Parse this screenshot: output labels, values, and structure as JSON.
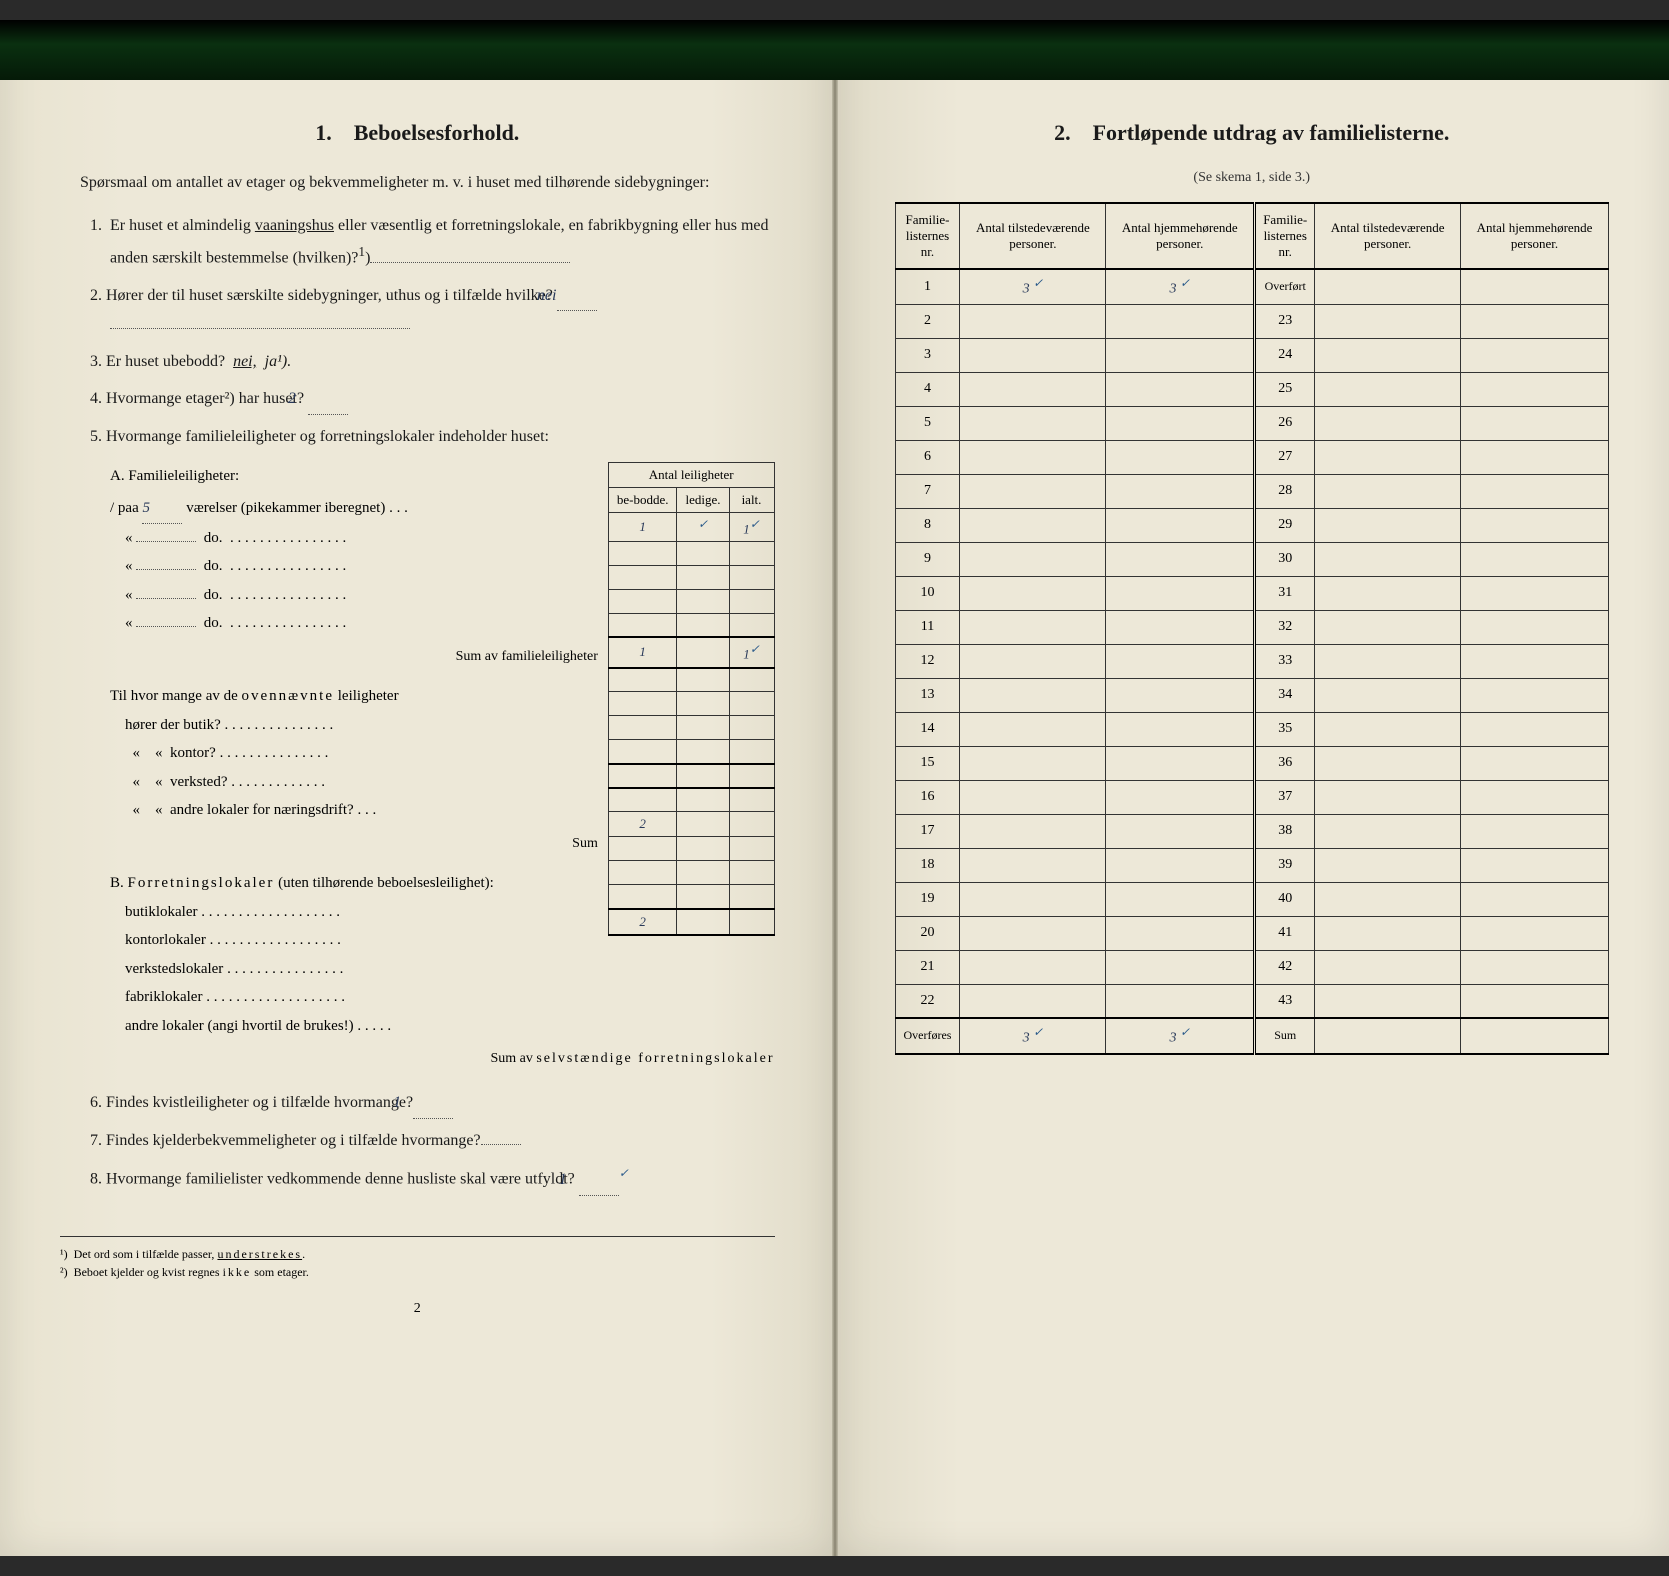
{
  "left_page": {
    "section_number": "1.",
    "section_title": "Beboelsesforhold.",
    "intro": "Spørsmaal om antallet av etager og bekvemmeligheter m. v. i huset med tilhørende sidebygninger:",
    "q1": "1. Er huset et almindelig vaaningshus eller væsentlig et forretningslokale, en fabrikbygning eller hus med anden særskilt bestemmelse (hvilken)?¹)",
    "q1_underline": "vaaningshus",
    "q2": "2. Hører der til huset særskilte sidebygninger, uthus og i tilfælde hvilke?",
    "q2_answer": "nei",
    "q3_pre": "3. Er huset ubebodd?",
    "q3_nei": "nei,",
    "q3_ja": "ja¹).",
    "q4_pre": "4. Hvormange etager²) har huset?",
    "q4_answer": "2",
    "q5": "5. Hvormange familieleiligheter og forretningslokaler indeholder huset:",
    "mini_header_top": "Antal leiligheter",
    "mini_header_1": "be-bodde.",
    "mini_header_2": "ledige.",
    "mini_header_3": "ialt.",
    "section_a_title": "A. Familieleiligheter:",
    "a_row1_pre": "/ paa",
    "a_row1_num": "5",
    "a_row1_post": "værelser (pikekammer iberegnet) . . .",
    "a_row1_bebodde": "1",
    "a_row1_check": "✓",
    "a_row1_ialt": "1",
    "a_do": "do.",
    "a_sum_label": "Sum av familieleiligheter",
    "a_sum_bebodde": "1",
    "a_sum_ialt": "1",
    "a_sum_check": "✓",
    "a_sub_intro": "Til hvor mange av de ovennævnte leiligheter hører der butik?",
    "a_sub_kontor": "kontor?",
    "a_sub_verksted": "verksted?",
    "a_sub_andre": "andre lokaler for næringsdrift?",
    "a_sub_sum": "Sum",
    "section_b_title": "B. Forretningslokaler (uten tilhørende beboelsesleilighet):",
    "b_butik": "butiklokaler",
    "b_kontor": "kontorlokaler",
    "b_kontor_val": "2",
    "b_verksted": "verkstedslokaler",
    "b_fabrik": "fabriklokaler",
    "b_andre": "andre lokaler (angi hvortil de brukes!)",
    "b_sum_label": "Sum av selvstændige forretningslokaler",
    "b_sum_val": "2",
    "q6": "6. Findes kvistleiligheter og i tilfælde hvormange?",
    "q6_answer": "1",
    "q7": "7. Findes kjelderbekvemmeligheter og i tilfælde hvormange?",
    "q8": "8. Hvormange familielister vedkommende denne husliste skal være utfyldt?",
    "q8_answer": "1",
    "q8_check": "✓",
    "footnote1": "¹) Det ord som i tilfælde passer, understrekes.",
    "footnote1_under": "understrekes",
    "footnote2": "²) Beboet kjelder og kvist regnes ikke som etager.",
    "footnote2_spaced": "ikke",
    "page_number": "2"
  },
  "right_page": {
    "section_number": "2.",
    "section_title": "Fortløpende utdrag av familielisterne.",
    "subtitle": "(Se skema 1, side 3.)",
    "headers": {
      "h1": "Familie-listernes nr.",
      "h2": "Antal tilstedeværende personer.",
      "h3": "Antal hjemmehørende personer.",
      "h4": "Familie-listernes nr.",
      "h5": "Antal tilstedeværende personer.",
      "h6": "Antal hjemmehørende personer."
    },
    "row1_val1": "3",
    "row1_check1": "✓",
    "row1_val2": "3",
    "row1_check2": "✓",
    "overfort": "Overført",
    "rows_left": [
      "1",
      "2",
      "3",
      "4",
      "5",
      "6",
      "7",
      "8",
      "9",
      "10",
      "11",
      "12",
      "13",
      "14",
      "15",
      "16",
      "17",
      "18",
      "19",
      "20",
      "21",
      "22"
    ],
    "rows_right": [
      "23",
      "24",
      "25",
      "26",
      "27",
      "28",
      "29",
      "30",
      "31",
      "32",
      "33",
      "34",
      "35",
      "36",
      "37",
      "38",
      "39",
      "40",
      "41",
      "42",
      "43"
    ],
    "overfores": "Overføres",
    "sum_label": "Sum",
    "bottom_val1": "3",
    "bottom_check1": "✓",
    "bottom_val2": "3",
    "bottom_check2": "✓"
  },
  "colors": {
    "paper": "#ede8d8",
    "ink": "#1a1a1a",
    "hand_ink": "#2a3a5a"
  }
}
